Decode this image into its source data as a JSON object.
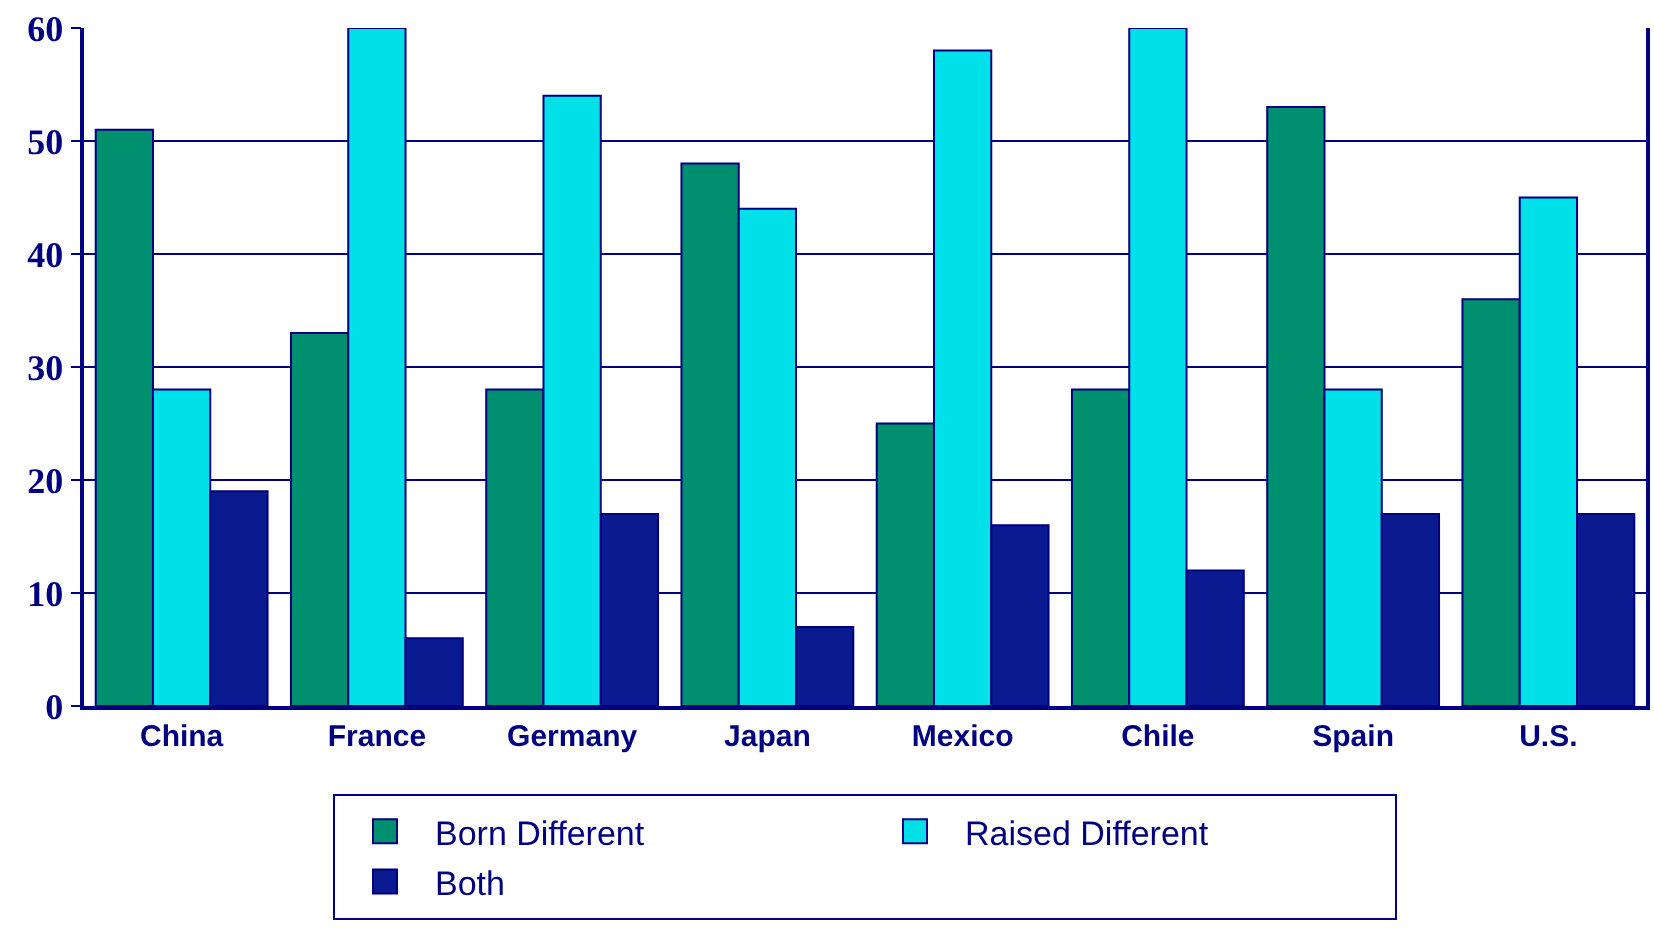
{
  "chart_data": {
    "type": "bar",
    "categories": [
      "China",
      "France",
      "Germany",
      "Japan",
      "Mexico",
      "Chile",
      "Spain",
      "U.S."
    ],
    "series": [
      {
        "name": "Born Different",
        "color": "#009070",
        "values": [
          51,
          33,
          28,
          48,
          25,
          28,
          53,
          36
        ]
      },
      {
        "name": "Raised Different",
        "color": "#00e0e8",
        "values": [
          28,
          60,
          54,
          44,
          58,
          60,
          28,
          45
        ]
      },
      {
        "name": "Both",
        "color": "#0a1a90",
        "values": [
          19,
          6,
          17,
          7,
          16,
          12,
          17,
          17
        ]
      }
    ],
    "ylim": [
      0,
      60
    ],
    "yticks": [
      0,
      10,
      20,
      30,
      40,
      50,
      60
    ],
    "grid": "y",
    "legend": "bottom"
  }
}
